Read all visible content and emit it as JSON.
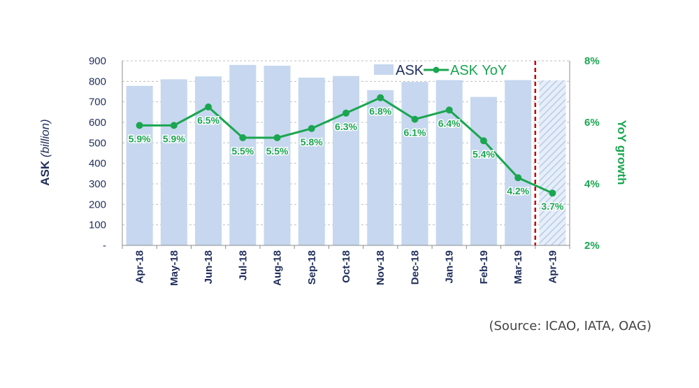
{
  "chart_data": {
    "type": "bar+line",
    "categories": [
      "Apr-18",
      "May-18",
      "Jun-18",
      "Jul-18",
      "Aug-18",
      "Sep-18",
      "Oct-18",
      "Nov-18",
      "Dec-18",
      "Jan-19",
      "Feb-19",
      "Mar-19",
      "Apr-19"
    ],
    "series": [
      {
        "name": "ASK",
        "type": "bar",
        "axis": "left",
        "values": [
          778,
          810,
          824,
          880,
          876,
          818,
          826,
          757,
          797,
          806,
          724,
          806,
          805
        ],
        "estimated_last": true
      },
      {
        "name": "ASK YoY",
        "type": "line",
        "axis": "right",
        "values": [
          5.9,
          5.9,
          6.5,
          5.5,
          5.5,
          5.8,
          6.3,
          6.8,
          6.1,
          6.4,
          5.4,
          4.2,
          3.7
        ],
        "labels": [
          "5.9%",
          "5.9%",
          "6.5%",
          "5.5%",
          "5.5%",
          "5.8%",
          "6.3%",
          "6.8%",
          "6.1%",
          "6.4%",
          "5.4%",
          "4.2%",
          "3.7%"
        ]
      }
    ],
    "ylabel_left_main": "ASK ",
    "ylabel_left_italic": "(billion)",
    "ylabel_right": "YoY growth",
    "ylim_left": [
      0,
      900
    ],
    "yticks_left": [
      "-",
      "100",
      "200",
      "300",
      "400",
      "500",
      "600",
      "700",
      "800",
      "900"
    ],
    "ylim_right": [
      2,
      8
    ],
    "yticks_right": [
      "2%",
      "4%",
      "6%",
      "8%"
    ],
    "legend_placement": "top-right",
    "grid": true,
    "forecast_divider_after": "Mar-19",
    "source_note": "(Source: ICAO, IATA, OAG)"
  },
  "colors": {
    "bar": "#c6d7ef",
    "line": "#1aa650",
    "axis_text": "#1f2d5c",
    "divider": "#c00000",
    "grid": "#bfbfbf"
  }
}
